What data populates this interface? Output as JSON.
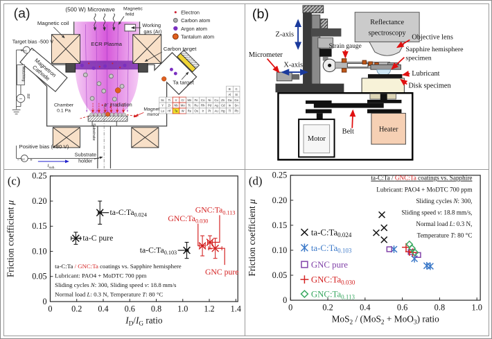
{
  "a": {
    "panel_label": "(a)",
    "microwave": "(500 W) Microwave",
    "magnetic_field_l1": "Magnetic",
    "magnetic_field_l2": "feild",
    "magnetic_coil": "Magnetic coil",
    "working_gas_l1": "Working",
    "working_gas_l2": "gas (Ar)",
    "target_bias": "Target bias -500 V",
    "dc_label": "DC",
    "dc_plus": "+",
    "dc_minus": "−",
    "magnetron_l1": "Magnetron",
    "magnetron_l2": "Cathode",
    "matching": "Matching",
    "rf_tilde": "~",
    "rf": "RF",
    "ecr_plasma": "ECR Plasma",
    "carbon_target": "Carbon target",
    "ta_target": "Ta target",
    "chamber_l1": "Chamber",
    "chamber_l2": "0.1 Pa",
    "e_irr_e": "e",
    "e_irr_sup": "-",
    "e_irr_rest": " irradiation",
    "mirror_l1": "Magnetic",
    "mirror_l2": "mirror",
    "substrate": "Substrate",
    "positive_bias": "Positive bias (+80 V)",
    "i_sub_base": "I",
    "i_sub_sub": "sub.",
    "holder_l1": "Substrate",
    "holder_l2": "holder",
    "legend": [
      {
        "label": "Electron",
        "color": "#cc2233"
      },
      {
        "label": "Carbon atom",
        "color": "#b0b0b0"
      },
      {
        "label": "Argon atom",
        "color": "#7a2fc0"
      },
      {
        "label": "Tantalum atom",
        "color": "#e06020"
      }
    ],
    "accent_blue": "#2222cc",
    "accent_red": "#d42020",
    "periodic_table": {
      "top": [
        [
          "B",
          "C"
        ],
        [
          "Al",
          "Si"
        ]
      ],
      "rows": [
        [
          "Sc",
          "Ti",
          "V",
          "Cr",
          "Mn",
          "Fe",
          "Co",
          "Ni",
          "Cu",
          "Zn",
          "Ga",
          "Ge"
        ],
        [
          "Y",
          "Zr",
          "Nb",
          "Mo",
          "Tc",
          "Ru",
          "Rh",
          "Pd",
          "Ag",
          "Cd",
          "In",
          "Sn"
        ],
        [
          "Lu",
          "Hf",
          "Ta",
          "W",
          "Re",
          "Os",
          "Ir",
          "Pt",
          "Au",
          "Hg",
          "Tl",
          "Pb"
        ]
      ],
      "highlight": "Ta",
      "highlight_color": "#f2e52e",
      "red_columns": [
        2,
        3
      ]
    }
  },
  "b": {
    "panel_label": "(b)",
    "z_axis": "Z-axis",
    "x_axis": "X-axis",
    "micrometer": "Micrometer",
    "strain_gauge": "Strain gauge",
    "reflect_l1": "Reflectance",
    "reflect_l2": "spectroscopy",
    "objective": "Objective lens",
    "sapphire_l1": "Sapphire hemisphere",
    "sapphire_l2": "specimen",
    "lubricant": "Lubricant",
    "disk": "Disk specimen",
    "motor": "Motor",
    "belt": "Belt",
    "heater": "Heater"
  },
  "chart_data": [
    {
      "type": "scatter",
      "panel": "c",
      "xlim": [
        0,
        1.4
      ],
      "ylim": [
        0,
        0.25
      ],
      "grid": false,
      "xticks": [
        {
          "v": 0,
          "t": "0"
        },
        {
          "v": 0.2,
          "t": "0.2"
        },
        {
          "v": 0.4,
          "t": "0.4"
        },
        {
          "v": 0.6,
          "t": "0.6"
        },
        {
          "v": 0.8,
          "t": "0.8"
        },
        {
          "v": 1.0,
          "t": "1.0"
        },
        {
          "v": 1.2,
          "t": "1.2"
        },
        {
          "v": 1.4,
          "t": "1.4"
        }
      ],
      "yticks": [
        {
          "v": 0,
          "t": "0"
        },
        {
          "v": 0.05,
          "t": "0.05"
        },
        {
          "v": 0.1,
          "t": "0.10"
        },
        {
          "v": 0.15,
          "t": "0.15"
        },
        {
          "v": 0.2,
          "t": "0.20"
        },
        {
          "v": 0.25,
          "t": "0.25"
        }
      ],
      "xlabel": [
        {
          "t": "I",
          "i": 1
        },
        {
          "t": "D",
          "sub": 1
        },
        {
          "t": "/"
        },
        {
          "t": "I",
          "i": 1
        },
        {
          "t": "G",
          "sub": 1
        },
        {
          "t": " ratio"
        }
      ],
      "ylabel": [
        {
          "t": "Friction coefficient "
        },
        {
          "t": "μ",
          "i": 1
        }
      ],
      "panel_label": "(c)",
      "note_size": 9,
      "notes": [
        {
          "x": 0.035,
          "y": 0.066,
          "anchor": "start",
          "parts": [
            {
              "t": "ta-C:Ta "
            },
            {
              "t": "/ GNC:Ta",
              "c": "#d42020"
            },
            {
              "t": " coatings vs. Sapphire hemisphere"
            }
          ]
        },
        {
          "x": 0.035,
          "y": 0.0475,
          "anchor": "start",
          "parts": [
            {
              "t": "Lubricant: PAO4 + MoDTC 700 ppm"
            }
          ]
        },
        {
          "x": 0.035,
          "y": 0.029,
          "anchor": "start",
          "parts": [
            {
              "t": "Sliding cycles "
            },
            {
              "t": "N",
              "i": 1
            },
            {
              "t": ": 300, Sliding speed "
            },
            {
              "t": "v",
              "i": 1
            },
            {
              "t": ": 18.8 mm/s"
            }
          ]
        },
        {
          "x": 0.035,
          "y": 0.0105,
          "anchor": "start",
          "parts": [
            {
              "t": "Normal load "
            },
            {
              "t": "L",
              "i": 1
            },
            {
              "t": ": 0.3 N, Temperature "
            },
            {
              "t": "T",
              "i": 1
            },
            {
              "t": ": 80 °C"
            }
          ]
        }
      ],
      "series": [
        {
          "id": "ta-c-pure",
          "name": "ta-C pure",
          "marker": "x",
          "color": "#111111",
          "ms": 5,
          "points": [
            {
              "x": 0.193,
              "y": 0.126,
              "xerr": 0.035,
              "yerr": 0.012
            }
          ],
          "callout": {
            "x": 0.245,
            "y": 0.1215,
            "anchor": "start",
            "parts": [
              {
                "t": "ta-C pure"
              }
            ],
            "connector": [
              [
                0.213,
                0.126
              ],
              [
                0.238,
                0.126
              ]
            ]
          }
        },
        {
          "id": "ta-c-ta0024",
          "name": "ta-C:Ta0.024",
          "marker": "x",
          "color": "#111111",
          "ms": 5,
          "points": [
            {
              "x": 0.375,
              "y": 0.177,
              "xerr": 0.013,
              "yerr": 0.023
            }
          ],
          "callout": {
            "x": 0.45,
            "y": 0.1725,
            "anchor": "start",
            "parts": [
              {
                "t": "ta-C:Ta"
              },
              {
                "t": "0.024",
                "sub": 1
              }
            ],
            "connector": [
              [
                0.392,
                0.177
              ],
              [
                0.443,
                0.177
              ]
            ]
          }
        },
        {
          "id": "ta-c-ta0103",
          "name": "ta-C:Ta0.103",
          "marker": "x",
          "color": "#111111",
          "ms": 5,
          "points": [
            {
              "x": 1.03,
              "y": 0.102,
              "xerr": 0.012,
              "yerr": 0.016
            }
          ],
          "callout": {
            "x": 0.955,
            "y": 0.0975,
            "anchor": "end",
            "parts": [
              {
                "t": "ta-C:Ta"
              },
              {
                "t": "0.103",
                "sub": 1
              }
            ],
            "connector": [
              [
                0.963,
                0.102
              ],
              [
                1.013,
                0.102
              ]
            ]
          }
        },
        {
          "id": "gnc-ta0030",
          "name": "GNC:Ta0.030",
          "marker": "x",
          "color": "#d42020",
          "ms": 5,
          "points": [
            {
              "x": 1.148,
              "y": 0.111,
              "xerr": 0.022,
              "yerr": 0.02
            }
          ],
          "callout": {
            "x": 1.04,
            "y": 0.16,
            "anchor": "middle",
            "parts": [
              {
                "t": "GNC:Ta"
              },
              {
                "t": "0.030",
                "sub": 1
              }
            ],
            "connector": [
              [
                1.115,
                0.155
              ],
              [
                1.115,
                0.111
              ],
              [
                1.128,
                0.111
              ]
            ]
          }
        },
        {
          "id": "gnc-ta0113",
          "name": "GNC:Ta0.113",
          "marker": "x",
          "color": "#d42020",
          "ms": 5,
          "points": [
            {
              "x": 1.205,
              "y": 0.118,
              "xerr": 0.018,
              "yerr": 0.013
            }
          ],
          "callout": {
            "x": 1.245,
            "y": 0.177,
            "anchor": "middle",
            "parts": [
              {
                "t": "GNC:Ta"
              },
              {
                "t": "0.113",
                "sub": 1
              }
            ],
            "connector": [
              [
                1.278,
                0.172
              ],
              [
                1.278,
                0.118
              ],
              [
                1.222,
                0.118
              ]
            ]
          }
        },
        {
          "id": "gnc-pure",
          "name": "GNC pure",
          "marker": "x",
          "color": "#d42020",
          "ms": 5,
          "points": [
            {
              "x": 1.245,
              "y": 0.106,
              "xerr": 0.05,
              "yerr": 0.02
            }
          ],
          "callout": {
            "x": 1.295,
            "y": 0.054,
            "anchor": "middle",
            "parts": [
              {
                "t": "GNC pure"
              }
            ],
            "connector": [
              [
                1.262,
                0.106
              ],
              [
                1.316,
                0.106
              ],
              [
                1.316,
                0.073
              ]
            ]
          }
        }
      ]
    },
    {
      "type": "scatter",
      "panel": "d",
      "xlim": [
        0,
        1.0
      ],
      "ylim": [
        0,
        0.25
      ],
      "grid": false,
      "xticks": [
        {
          "v": 0,
          "t": "0"
        },
        {
          "v": 0.2,
          "t": "0.2"
        },
        {
          "v": 0.4,
          "t": "0.4"
        },
        {
          "v": 0.6,
          "t": "0.6"
        },
        {
          "v": 0.8,
          "t": "0.8"
        },
        {
          "v": 1.0,
          "t": "1.0"
        }
      ],
      "yticks": [
        {
          "v": 0,
          "t": "0"
        },
        {
          "v": 0.05,
          "t": "0.05"
        },
        {
          "v": 0.1,
          "t": "0.10"
        },
        {
          "v": 0.15,
          "t": "0.15"
        },
        {
          "v": 0.2,
          "t": "0.20"
        },
        {
          "v": 0.25,
          "t": "0.25"
        }
      ],
      "xlabel": [
        {
          "t": "MoS"
        },
        {
          "t": "2",
          "sub": 1
        },
        {
          "t": " / (MoS"
        },
        {
          "t": "2",
          "sub": 1
        },
        {
          "t": " + MoO"
        },
        {
          "t": "3",
          "sub": 1
        },
        {
          "t": ") ratio"
        }
      ],
      "ylabel": [
        {
          "t": "Friction coefficient "
        },
        {
          "t": "μ",
          "i": 1
        }
      ],
      "panel_label": "(d)",
      "note_size": 9.3,
      "notes": [
        {
          "x": 0.975,
          "y": 0.2405,
          "anchor": "end",
          "u": 1,
          "parts": [
            {
              "t": "ta-C:Ta / "
            },
            {
              "t": "GNC:Ta",
              "c": "#d42020"
            },
            {
              "t": " coatings vs. Sapphire"
            }
          ]
        },
        {
          "x": 0.975,
          "y": 0.2175,
          "anchor": "end",
          "parts": [
            {
              "t": "Lubricant: PAO4 + MoDTC 700 ppm"
            }
          ]
        },
        {
          "x": 0.975,
          "y": 0.1945,
          "anchor": "end",
          "parts": [
            {
              "t": "Sliding cycles "
            },
            {
              "t": "N",
              "i": 1
            },
            {
              "t": ": 300,"
            }
          ]
        },
        {
          "x": 0.975,
          "y": 0.1715,
          "anchor": "end",
          "parts": [
            {
              "t": "Sliding speed "
            },
            {
              "t": "v",
              "i": 1
            },
            {
              "t": ": 18.8 mm/s,"
            }
          ]
        },
        {
          "x": 0.975,
          "y": 0.1485,
          "anchor": "end",
          "parts": [
            {
              "t": "Normal load "
            },
            {
              "t": "L",
              "i": 1
            },
            {
              "t": ": 0.3 N,"
            }
          ]
        },
        {
          "x": 0.975,
          "y": 0.1255,
          "anchor": "end",
          "parts": [
            {
              "t": "Temperature "
            },
            {
              "t": "T",
              "i": 1
            },
            {
              "t": ": 80 °C"
            }
          ]
        }
      ],
      "series": [
        {
          "id": "ta-c-ta0024",
          "name": "ta-C:Ta0.024",
          "marker": "x",
          "color": "#111111",
          "ms": 4.5,
          "points": [
            [
              0.46,
              0.135
            ],
            [
              0.49,
              0.171
            ],
            [
              0.502,
              0.145
            ],
            [
              0.502,
              0.121
            ]
          ]
        },
        {
          "id": "ta-c-ta0103",
          "name": "ta-C:Ta0.103",
          "marker": "asterisk",
          "color": "#3a78c8",
          "ms": 4.5,
          "points": [
            [
              0.555,
              0.102
            ],
            [
              0.665,
              0.083
            ],
            [
              0.731,
              0.069
            ],
            [
              0.75,
              0.068
            ]
          ]
        },
        {
          "id": "gnc-pure",
          "name": "GNC pure",
          "marker": "square",
          "color": "#8040a8",
          "ms": 4,
          "points": [
            [
              0.53,
              0.102
            ],
            [
              0.645,
              0.0965
            ],
            [
              0.685,
              0.0905
            ]
          ]
        },
        {
          "id": "gnc-ta0030",
          "name": "GNC:Ta0.030",
          "marker": "plus",
          "color": "#d42020",
          "ms": 5,
          "points": [
            [
              0.62,
              0.106
            ],
            [
              0.638,
              0.097
            ],
            [
              0.656,
              0.0955
            ]
          ]
        },
        {
          "id": "gnc-ta0113",
          "name": "GNC:Ta0.113",
          "marker": "diamond",
          "color": "#38a860",
          "ms": 4.5,
          "points": [
            [
              0.638,
              0.112
            ],
            [
              0.652,
              0.104
            ],
            [
              0.668,
              0.0955
            ]
          ]
        }
      ],
      "legend": {
        "x": 0.075,
        "tx": 0.11,
        "size": 13,
        "items": [
          {
            "marker": "x",
            "color": "#111111",
            "y": 0.136,
            "parts": [
              {
                "t": "ta-C:Ta"
              },
              {
                "t": "0.024",
                "sub": 1
              }
            ]
          },
          {
            "marker": "asterisk",
            "color": "#3a78c8",
            "y": 0.105,
            "parts": [
              {
                "t": "ta-C:Ta"
              },
              {
                "t": "0.103",
                "sub": 1
              }
            ]
          },
          {
            "marker": "square",
            "color": "#8040a8",
            "y": 0.0715,
            "parts": [
              {
                "t": "GNC pure"
              }
            ]
          },
          {
            "marker": "plus",
            "color": "#d42020",
            "y": 0.0415,
            "parts": [
              {
                "t": "GNC:Ta"
              },
              {
                "t": "0.030",
                "sub": 1
              }
            ]
          },
          {
            "marker": "diamond",
            "color": "#38a860",
            "y": 0.0125,
            "parts": [
              {
                "t": "GNC:Ta"
              },
              {
                "t": "0.113",
                "sub": 1
              }
            ]
          }
        ]
      }
    }
  ]
}
